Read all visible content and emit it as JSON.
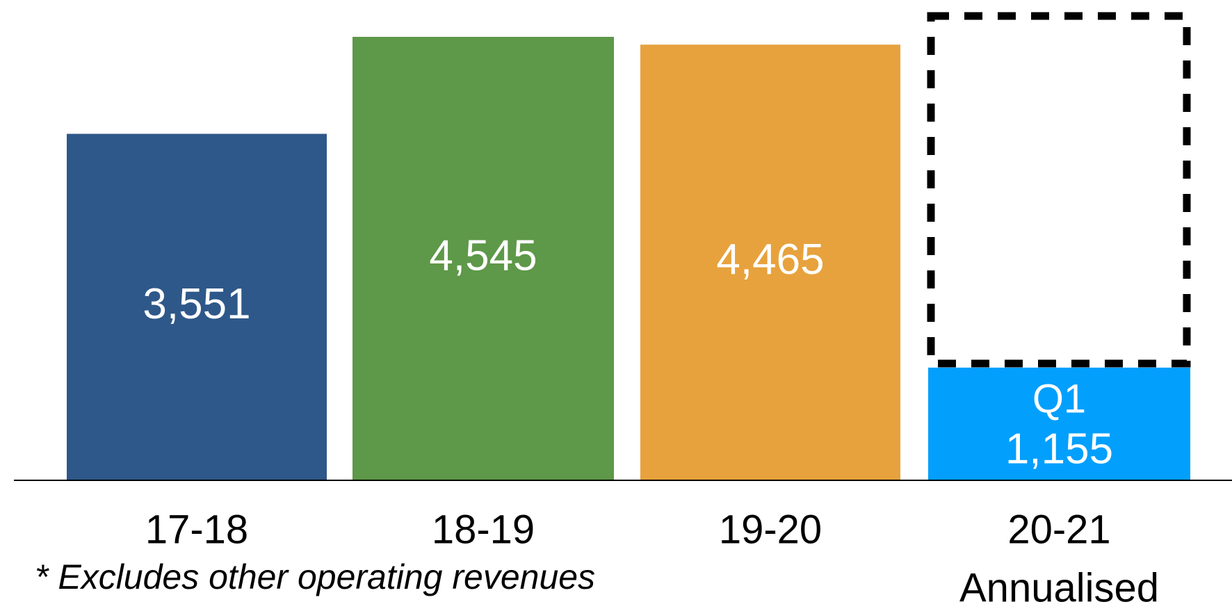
{
  "chart_data": {
    "type": "bar",
    "categories": [
      "17-18",
      "18-19",
      "19-20",
      "20-21"
    ],
    "values": [
      3551,
      4545,
      4465,
      1155
    ],
    "value_labels": [
      "3,551",
      "4,545",
      "4,465",
      "1,155"
    ],
    "colors": [
      "#2e5889",
      "#5e9849",
      "#e7a23d",
      "#039ffd"
    ],
    "annotations": {
      "q1_label": "Q1",
      "annualised": "Annualised",
      "footnote": "* Excludes other operating revenues"
    }
  }
}
